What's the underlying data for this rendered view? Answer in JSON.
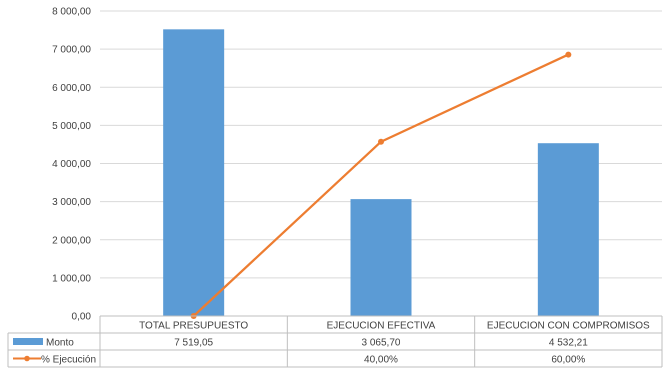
{
  "chart_data": {
    "type": "bar",
    "title": "",
    "xlabel": "",
    "ylabel": "",
    "ylim": [
      0,
      8000
    ],
    "yticks": [
      0,
      1000,
      2000,
      3000,
      4000,
      5000,
      6000,
      7000,
      8000
    ],
    "ytick_labels": [
      "0,00",
      "1 000,00",
      "2 000,00",
      "3 000,00",
      "4 000,00",
      "5 000,00",
      "6 000,00",
      "7 000,00",
      "8 000,00"
    ],
    "grid": true,
    "categories": [
      "TOTAL PRESUPUESTO",
      "EJECUCION EFECTIVA",
      "EJECUCION CON COMPROMISOS"
    ],
    "series": [
      {
        "name": "Monto",
        "kind": "bar",
        "color": "#5b9bd5",
        "values": [
          7519.05,
          3065.7,
          4532.21
        ],
        "labels": [
          "7 519,05",
          "3 065,70",
          "4 532,21"
        ]
      },
      {
        "name": "% Ejecución",
        "kind": "line",
        "color": "#ed7d31",
        "values": [
          0,
          40,
          60
        ],
        "labels": [
          "",
          "40,00%",
          "60,00%"
        ]
      }
    ],
    "legend": "data-table"
  }
}
